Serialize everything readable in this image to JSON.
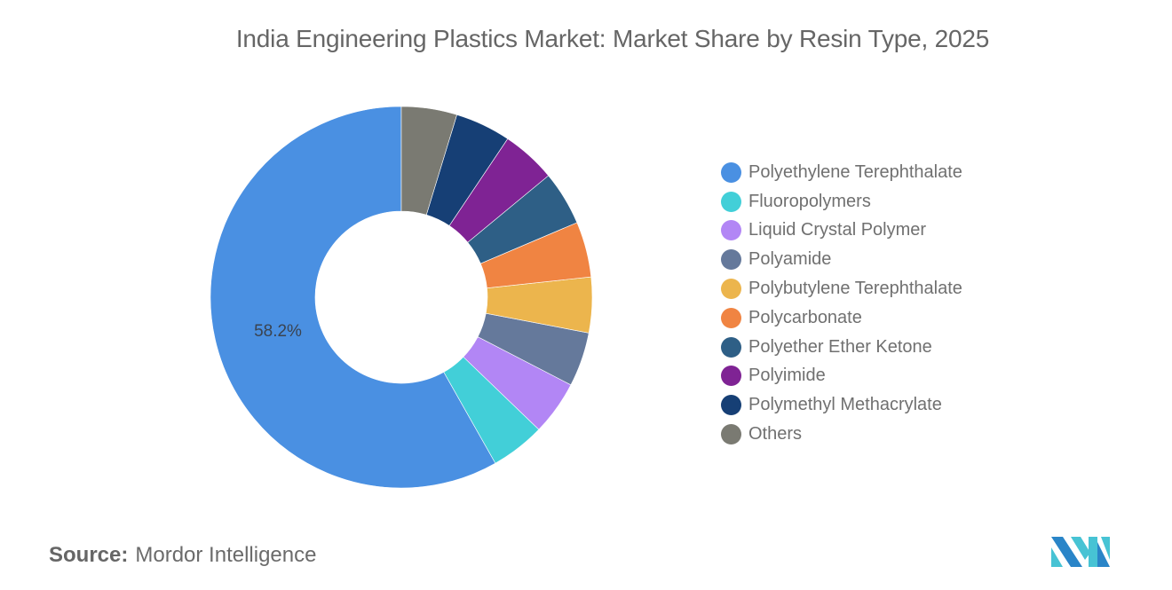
{
  "chart_data": {
    "type": "pie",
    "subtype": "donut",
    "title": "India Engineering Plastics Market: Market Share by Resin Type, 2025",
    "categories": [
      "Polyethylene Terephthalate",
      "Fluoropolymers",
      "Liquid Crystal Polymer",
      "Polyamide",
      "Polybutylene Terephthalate",
      "Polycarbonate",
      "Polyether Ether Ketone",
      "Polyimide",
      "Polymethyl Methacrylate",
      "Others"
    ],
    "values": [
      58.2,
      4.6,
      4.6,
      4.6,
      4.7,
      4.7,
      4.6,
      4.6,
      4.7,
      4.7
    ],
    "colors": [
      "#4a90e2",
      "#42cfd8",
      "#b286f5",
      "#65799b",
      "#ecb54d",
      "#f08442",
      "#2e5f86",
      "#7f2394",
      "#163f75",
      "#7a7a72"
    ],
    "data_labels": [
      {
        "category": "Polyethylene Terephthalate",
        "text": "58.2%"
      }
    ],
    "legend_position": "right",
    "start_angle": "12 o'clock, counter-clockwise for first slice"
  },
  "title": "India Engineering Plastics Market: Market Share by Resin Type, 2025",
  "legend": {
    "items": [
      {
        "label": "Polyethylene Terephthalate",
        "color": "#4a90e2"
      },
      {
        "label": "Fluoropolymers",
        "color": "#42cfd8"
      },
      {
        "label": "Liquid Crystal Polymer",
        "color": "#b286f5"
      },
      {
        "label": "Polyamide",
        "color": "#65799b"
      },
      {
        "label": "Polybutylene Terephthalate",
        "color": "#ecb54d"
      },
      {
        "label": "Polycarbonate",
        "color": "#f08442"
      },
      {
        "label": "Polyether Ether Ketone",
        "color": "#2e5f86"
      },
      {
        "label": "Polyimide",
        "color": "#7f2394"
      },
      {
        "label": "Polymethyl Methacrylate",
        "color": "#163f75"
      },
      {
        "label": "Others",
        "color": "#7a7a72"
      }
    ]
  },
  "footer": {
    "source_key": "Source:",
    "source_value": "Mordor Intelligence",
    "logo": "mordor-intelligence-logo"
  }
}
